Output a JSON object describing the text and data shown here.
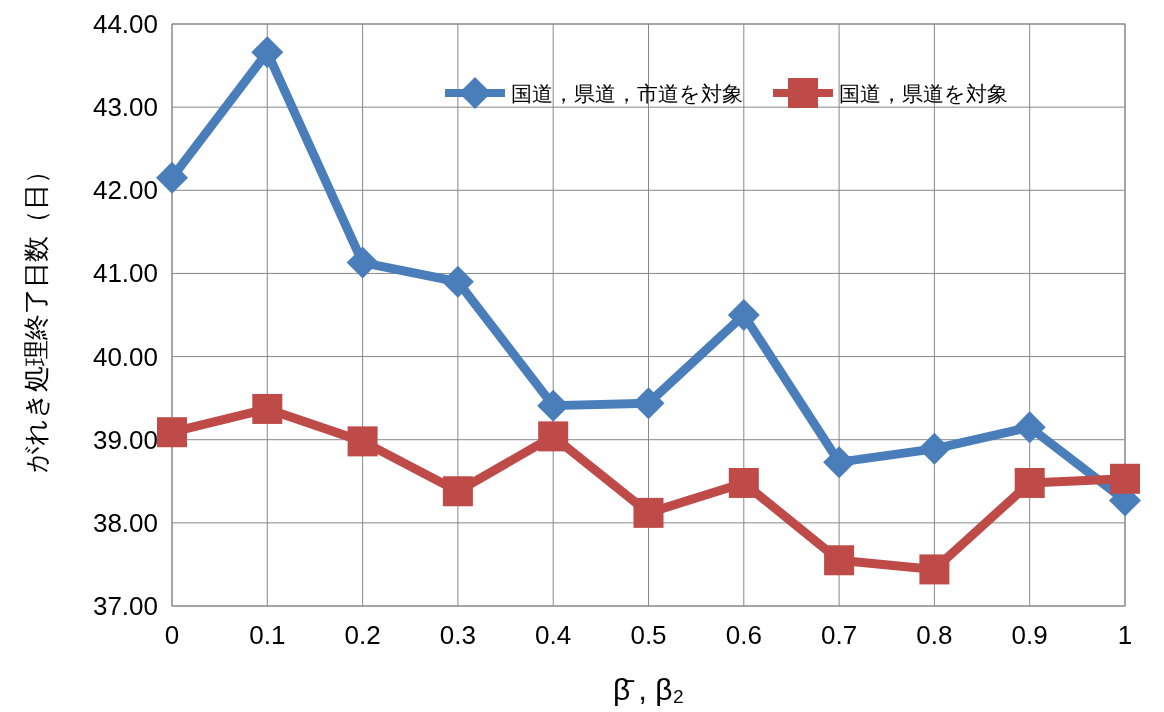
{
  "chart_data": {
    "type": "line",
    "xlabel": "β̄ , β₂",
    "ylabel": "がれき処理終了日数（日）",
    "x": [
      0,
      0.1,
      0.2,
      0.3,
      0.4,
      0.5,
      0.6,
      0.7,
      0.8,
      0.9,
      1
    ],
    "xlim": [
      0,
      1
    ],
    "xticks": [
      0,
      0.1,
      0.2,
      0.3,
      0.4,
      0.5,
      0.6,
      0.7,
      0.8,
      0.9,
      1
    ],
    "ylim": [
      37,
      44
    ],
    "yticks": [
      {
        "value": 37,
        "label": "37.00"
      },
      {
        "value": 38,
        "label": "38.00"
      },
      {
        "value": 39,
        "label": "39.00"
      },
      {
        "value": 40,
        "label": "40.00"
      },
      {
        "value": 41,
        "label": "41.00"
      },
      {
        "value": 42,
        "label": "42.00"
      },
      {
        "value": 43,
        "label": "43.00"
      },
      {
        "value": 44,
        "label": "44.00"
      }
    ],
    "grid": true,
    "legend": "top right",
    "series": [
      {
        "name": "国道，県道，市道を対象",
        "color": "#4a7ebb",
        "marker": "diamond",
        "values": [
          42.15,
          43.66,
          41.13,
          40.9,
          39.41,
          39.44,
          40.5,
          38.73,
          38.89,
          39.15,
          38.27
        ]
      },
      {
        "name": "国道，県道を対象",
        "color": "#be4b48",
        "marker": "square",
        "values": [
          39.09,
          39.37,
          38.98,
          38.38,
          39.04,
          38.12,
          38.48,
          37.55,
          37.44,
          38.48,
          38.53
        ]
      }
    ]
  }
}
